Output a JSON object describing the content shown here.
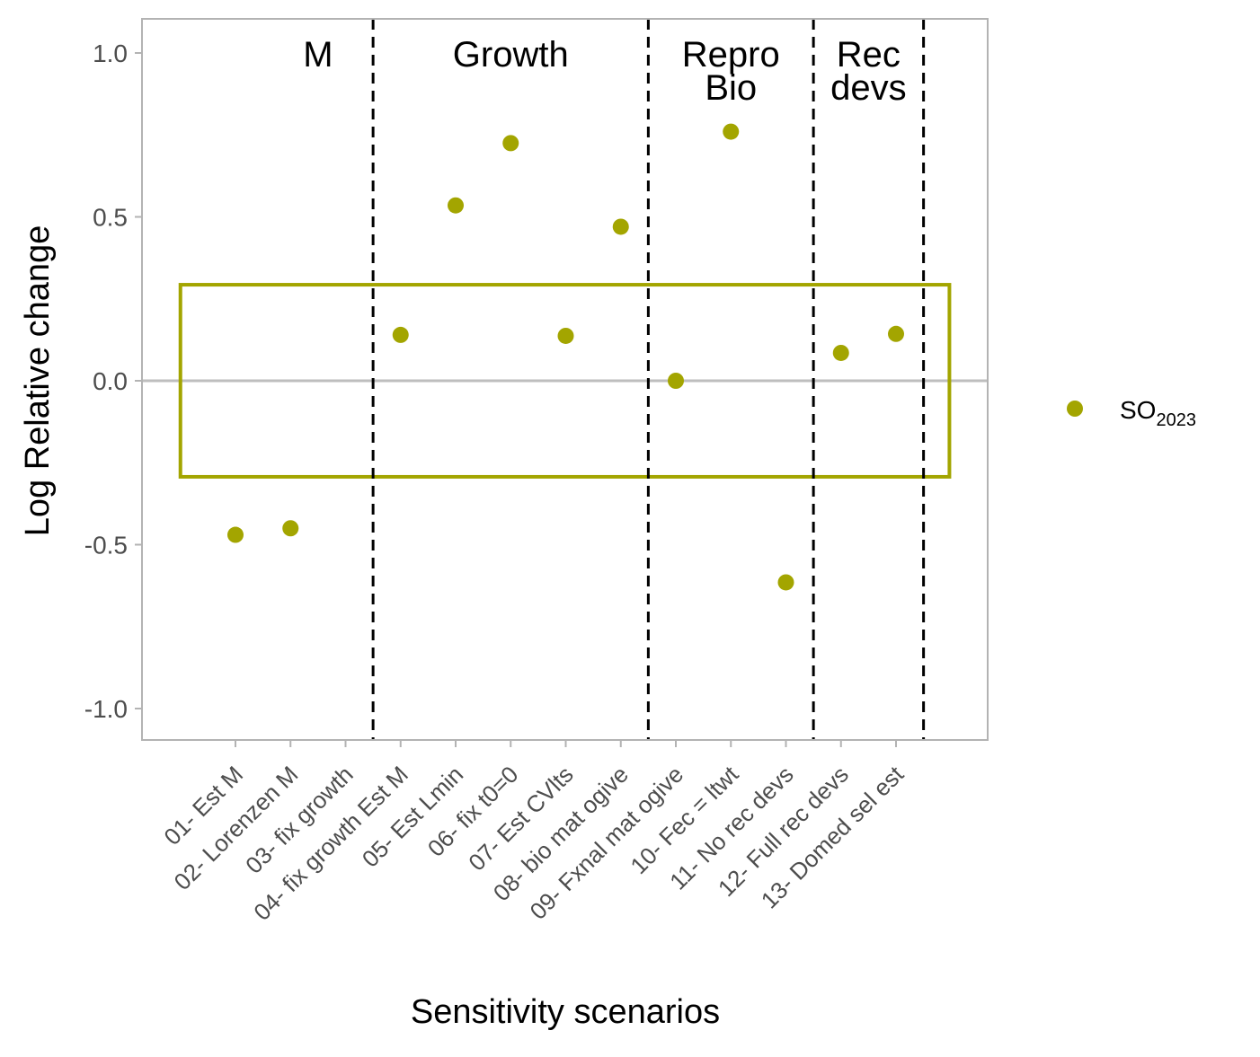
{
  "chart_data": {
    "type": "scatter",
    "xlabel": "Sensitivity scenarios",
    "ylabel": "Log Relative change",
    "ylim": [
      -1.1,
      1.1
    ],
    "yticks": [
      1.0,
      0.5,
      0.0,
      -0.5,
      -1.0
    ],
    "ytick_labels": [
      "1.0",
      "0.5",
      "0.0",
      "-0.5",
      "-1.0"
    ],
    "grid": false,
    "legend_position": "right",
    "categories": [
      "01- Est M",
      "02- Lorenzen M",
      "03- fix growth",
      "04- fix growth Est M",
      "05- Est Lmin",
      "06- fix t0=0",
      "07- Est CVlts",
      "08- bio mat ogive",
      "09- Fxnal mat ogive",
      "10- Fec = ltwt",
      "11- No rec devs",
      "12- Full rec devs",
      "13- Domed sel est"
    ],
    "series": [
      {
        "name_base": "SO",
        "name_sub": "2023",
        "color": "#a3a500",
        "values": [
          -0.47,
          -0.45,
          null,
          0.14,
          0.535,
          0.725,
          0.137,
          0.47,
          0.0,
          0.76,
          -0.615,
          0.085,
          0.143
        ]
      }
    ],
    "reference_line": {
      "y": 0.0,
      "color": "#bebebe"
    },
    "band": {
      "ymin": -0.293,
      "ymax": 0.293,
      "x_from_category": 0,
      "x_to_category": 13,
      "color": "#a3a500"
    },
    "group_dividers_after_category": [
      2,
      7,
      10,
      12
    ],
    "groups": [
      {
        "lines": [
          "M"
        ],
        "center_category": 1.5
      },
      {
        "lines": [
          "Growth"
        ],
        "center_category": 5
      },
      {
        "lines": [
          "Repro",
          "Bio"
        ],
        "center_category": 9
      },
      {
        "lines": [
          "Rec",
          "devs"
        ],
        "center_category": 11.5
      }
    ]
  }
}
